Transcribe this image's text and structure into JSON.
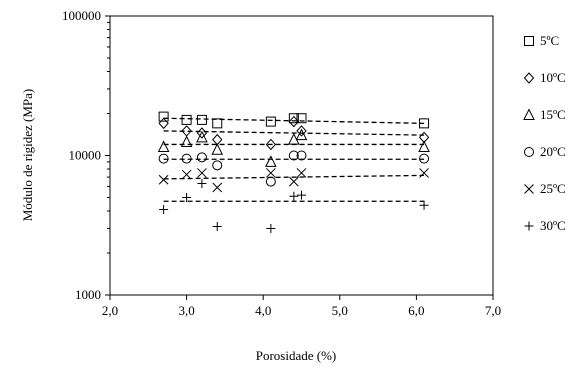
{
  "chart_data": {
    "type": "scatter",
    "xlabel": "Porosidade (%)",
    "ylabel": "Módulo de rigidez (MPa)",
    "xlim": [
      2.0,
      7.0
    ],
    "ylim": [
      1000,
      100000
    ],
    "y_scale": "log",
    "grid": false,
    "legend_position": "right",
    "x_ticks": [
      "2,0",
      "3,0",
      "4,0",
      "5,0",
      "6,0",
      "7,0"
    ],
    "y_ticks": [
      "1000",
      "10000",
      "100000"
    ],
    "series": [
      {
        "name": "5ºC",
        "marker": "square",
        "x": [
          2.7,
          3.0,
          3.2,
          3.4,
          4.1,
          4.4,
          4.5,
          6.1
        ],
        "y": [
          19000,
          18000,
          18000,
          17000,
          17500,
          18500,
          18500,
          17000
        ],
        "trend": [
          [
            2.7,
            18500
          ],
          [
            6.1,
            17000
          ]
        ]
      },
      {
        "name": "10ºC",
        "marker": "diamond",
        "x": [
          2.7,
          3.0,
          3.2,
          3.4,
          4.1,
          4.4,
          4.5,
          6.1
        ],
        "y": [
          17000,
          15000,
          14500,
          13000,
          12000,
          17500,
          15000,
          13500
        ],
        "trend": [
          [
            2.7,
            15000
          ],
          [
            6.1,
            14000
          ]
        ]
      },
      {
        "name": "15ºC",
        "marker": "triangle",
        "x": [
          2.7,
          3.0,
          3.2,
          3.4,
          4.1,
          4.4,
          4.5,
          6.1
        ],
        "y": [
          11500,
          12500,
          13500,
          11000,
          9000,
          13000,
          14000,
          11500
        ],
        "trend": [
          [
            2.7,
            12000
          ],
          [
            6.1,
            12000
          ]
        ]
      },
      {
        "name": "20ºC",
        "marker": "circle",
        "x": [
          2.7,
          3.0,
          3.2,
          3.4,
          4.1,
          4.4,
          4.5,
          6.1
        ],
        "y": [
          9500,
          9500,
          9700,
          8500,
          6500,
          10000,
          10000,
          9500
        ],
        "trend": [
          [
            2.7,
            9400
          ],
          [
            6.1,
            9400
          ]
        ]
      },
      {
        "name": "25ºC",
        "marker": "x",
        "x": [
          2.7,
          3.0,
          3.2,
          3.4,
          4.1,
          4.4,
          4.5,
          6.1
        ],
        "y": [
          6700,
          7300,
          7500,
          5900,
          7500,
          6500,
          7500,
          7500
        ],
        "trend": [
          [
            2.7,
            6800
          ],
          [
            6.1,
            7200
          ]
        ]
      },
      {
        "name": "30ºC",
        "marker": "plus",
        "x": [
          2.7,
          3.0,
          3.2,
          3.4,
          4.1,
          4.4,
          4.5,
          6.1
        ],
        "y": [
          4100,
          5000,
          6300,
          3100,
          3000,
          5100,
          5200,
          4400
        ],
        "trend": [
          [
            2.7,
            4700
          ],
          [
            6.1,
            4700
          ]
        ]
      }
    ]
  }
}
